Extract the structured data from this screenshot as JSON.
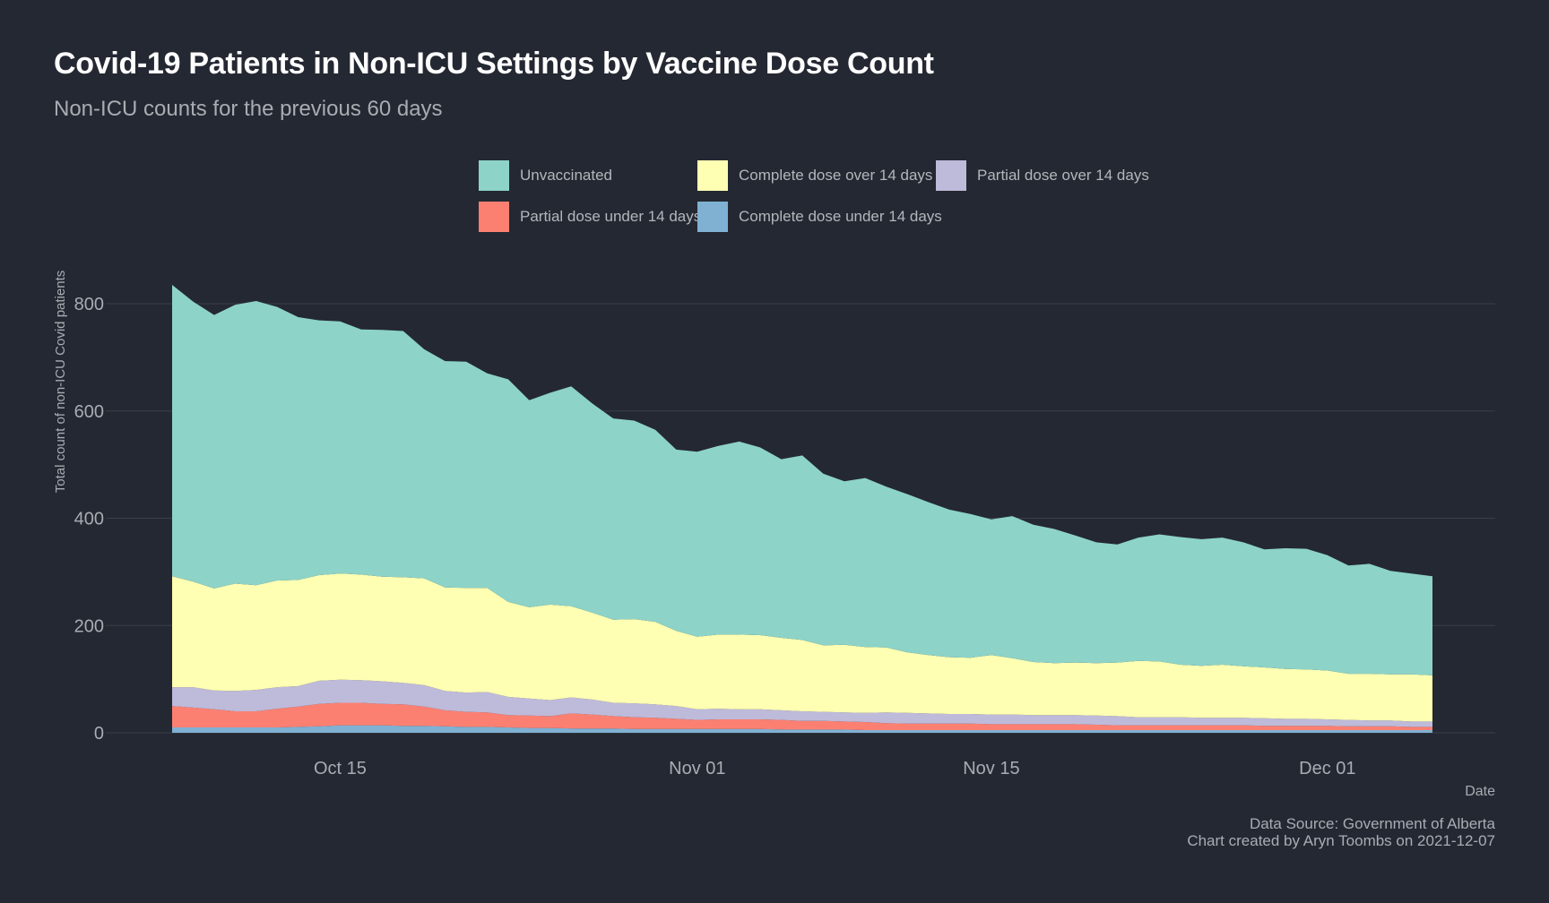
{
  "title": "Covid-19 Patients in Non-ICU Settings by Vaccine Dose Count",
  "subtitle": "Non-ICU counts for the previous 60 days",
  "caption": {
    "source": "Data Source: Government of Alberta",
    "credit": "Chart created by Aryn Toombs on 2021-12-07"
  },
  "colors": {
    "background": "#242832",
    "gridline": "#3a3e48",
    "tick_text": "#a9acb3",
    "unvaccinated": "#8dd3c7",
    "complete_over": "#ffffb3",
    "partial_over": "#bebada",
    "partial_under": "#fb8072",
    "complete_under": "#80b1d3"
  },
  "chart_data": {
    "type": "area",
    "stacked": true,
    "xlabel": "Date",
    "ylabel": "Total count of non-ICU Covid patients",
    "ylim": [
      0,
      880
    ],
    "yticks": [
      0,
      200,
      400,
      600,
      800
    ],
    "x_range": [
      "2021-10-07",
      "2021-12-06"
    ],
    "xticks": [
      {
        "date": "2021-10-15",
        "label": "Oct 15"
      },
      {
        "date": "2021-11-01",
        "label": "Nov 01"
      },
      {
        "date": "2021-11-15",
        "label": "Nov 15"
      },
      {
        "date": "2021-12-01",
        "label": "Dec 01"
      }
    ],
    "legend_position": "top",
    "legend_order": [
      "Unvaccinated",
      "Complete dose over 14 days",
      "Partial dose over 14 days",
      "Partial dose under 14 days",
      "Complete dose under 14 days"
    ],
    "x": [
      "2021-10-07",
      "2021-10-08",
      "2021-10-09",
      "2021-10-10",
      "2021-10-11",
      "2021-10-12",
      "2021-10-13",
      "2021-10-14",
      "2021-10-15",
      "2021-10-16",
      "2021-10-17",
      "2021-10-18",
      "2021-10-19",
      "2021-10-20",
      "2021-10-21",
      "2021-10-22",
      "2021-10-23",
      "2021-10-24",
      "2021-10-25",
      "2021-10-26",
      "2021-10-27",
      "2021-10-28",
      "2021-10-29",
      "2021-10-30",
      "2021-10-31",
      "2021-11-01",
      "2021-11-02",
      "2021-11-03",
      "2021-11-04",
      "2021-11-05",
      "2021-11-06",
      "2021-11-07",
      "2021-11-08",
      "2021-11-09",
      "2021-11-10",
      "2021-11-11",
      "2021-11-12",
      "2021-11-13",
      "2021-11-14",
      "2021-11-15",
      "2021-11-16",
      "2021-11-17",
      "2021-11-18",
      "2021-11-19",
      "2021-11-20",
      "2021-11-21",
      "2021-11-22",
      "2021-11-23",
      "2021-11-24",
      "2021-11-25",
      "2021-11-26",
      "2021-11-27",
      "2021-11-28",
      "2021-11-29",
      "2021-11-30",
      "2021-12-01",
      "2021-12-02",
      "2021-12-03",
      "2021-12-04",
      "2021-12-05",
      "2021-12-06"
    ],
    "series": [
      {
        "name": "Complete dose under 14 days",
        "color_key": "complete_under",
        "values": [
          10,
          10,
          10,
          10,
          10,
          10,
          11,
          12,
          14,
          14,
          14,
          13,
          13,
          12,
          11,
          11,
          10,
          9,
          9,
          8,
          8,
          8,
          7,
          7,
          7,
          7,
          7,
          7,
          7,
          6,
          6,
          6,
          6,
          5,
          5,
          5,
          5,
          5,
          5,
          5,
          5,
          5,
          5,
          5,
          5,
          5,
          5,
          5,
          5,
          5,
          5,
          5,
          5,
          5,
          5,
          5,
          5,
          5,
          5,
          5,
          5
        ]
      },
      {
        "name": "Partial dose under 14 days",
        "color_key": "partial_under",
        "values": [
          40,
          37,
          34,
          30,
          30,
          35,
          38,
          42,
          42,
          42,
          40,
          40,
          36,
          30,
          28,
          27,
          23,
          23,
          22,
          28,
          26,
          23,
          22,
          21,
          19,
          17,
          18,
          18,
          18,
          18,
          16,
          16,
          15,
          15,
          13,
          12,
          12,
          12,
          12,
          11,
          11,
          11,
          11,
          11,
          10,
          9,
          9,
          9,
          9,
          9,
          9,
          9,
          8,
          8,
          8,
          8,
          7,
          7,
          7,
          6,
          6
        ]
      },
      {
        "name": "Partial dose over 14 days",
        "color_key": "partial_over",
        "values": [
          35,
          38,
          35,
          38,
          40,
          40,
          38,
          43,
          43,
          42,
          42,
          40,
          40,
          36,
          36,
          38,
          34,
          32,
          30,
          30,
          28,
          25,
          26,
          25,
          24,
          20,
          20,
          19,
          19,
          18,
          18,
          17,
          17,
          17,
          20,
          20,
          19,
          18,
          18,
          18,
          18,
          17,
          17,
          17,
          17,
          17,
          15,
          15,
          15,
          14,
          14,
          14,
          14,
          13,
          13,
          12,
          12,
          11,
          11,
          10,
          10
        ]
      },
      {
        "name": "Complete dose over 14 days",
        "color_key": "complete_over",
        "values": [
          207,
          197,
          190,
          200,
          195,
          199,
          198,
          197,
          198,
          197,
          195,
          197,
          199,
          193,
          195,
          194,
          177,
          170,
          178,
          170,
          162,
          155,
          157,
          154,
          140,
          135,
          138,
          139,
          138,
          135,
          133,
          124,
          126,
          123,
          121,
          113,
          109,
          106,
          105,
          111,
          105,
          99,
          97,
          98,
          98,
          100,
          105,
          104,
          98,
          97,
          99,
          96,
          95,
          93,
          92,
          91,
          86,
          87,
          86,
          88,
          86
        ]
      },
      {
        "name": "Unvaccinated",
        "color_key": "unvaccinated",
        "values": [
          543,
          522,
          510,
          520,
          530,
          510,
          490,
          475,
          470,
          457,
          460,
          459,
          427,
          422,
          422,
          400,
          415,
          386,
          395,
          410,
          390,
          375,
          370,
          358,
          338,
          345,
          352,
          360,
          350,
          333,
          344,
          320,
          305,
          315,
          300,
          295,
          285,
          275,
          268,
          253,
          265,
          256,
          250,
          237,
          225,
          220,
          230,
          237,
          238,
          236,
          237,
          231,
          220,
          225,
          225,
          215,
          202,
          205,
          193,
          188,
          185
        ]
      }
    ]
  }
}
